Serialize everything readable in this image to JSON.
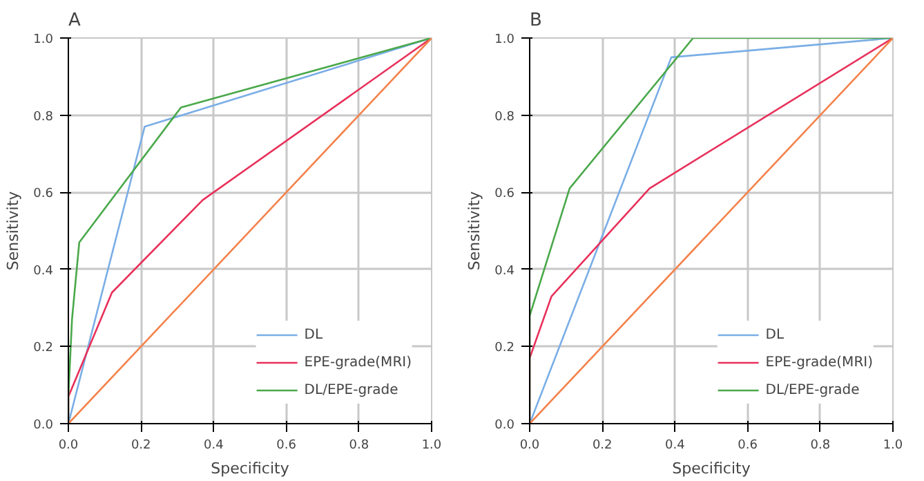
{
  "chart_data": [
    {
      "type": "line",
      "title": "A",
      "xlabel": "Specificity",
      "ylabel": "Sensitivity",
      "xlim": [
        0,
        1
      ],
      "ylim": [
        0,
        1
      ],
      "xticks": [
        {
          "value": 0,
          "label": "0.0"
        },
        {
          "value": 0.2,
          "label": "0.2"
        },
        {
          "value": 0.4,
          "label": "0.4"
        },
        {
          "value": 0.6,
          "label": "0.6"
        },
        {
          "value": 0.8,
          "label": "0.8"
        },
        {
          "value": 1,
          "label": "1.0"
        }
      ],
      "yticks": [
        {
          "value": 0,
          "label": "0.0"
        },
        {
          "value": 0.2,
          "label": "0.2"
        },
        {
          "value": 0.4,
          "label": "0.4"
        },
        {
          "value": 0.6,
          "label": "0.6"
        },
        {
          "value": 0.8,
          "label": "0.8"
        },
        {
          "value": 1,
          "label": "1.0"
        }
      ],
      "grid": true,
      "legend": "bottom right",
      "series": [
        {
          "name": "DL",
          "color": "#7aaee6",
          "x": [
            0,
            0.21,
            1
          ],
          "values": [
            0,
            0.77,
            1
          ]
        },
        {
          "name": "EPE-grade(MRI)",
          "color": "#e8305a",
          "x": [
            0,
            0,
            0.12,
            0.37,
            1
          ],
          "values": [
            0,
            0.07,
            0.34,
            0.58,
            1
          ]
        },
        {
          "name": "DL/EPE-grade",
          "color": "#4aa84a",
          "x": [
            0,
            0,
            0.01,
            0.03,
            0.31,
            1
          ],
          "values": [
            0,
            0.07,
            0.27,
            0.47,
            0.82,
            1
          ]
        },
        {
          "color": "#f4824b",
          "x": [
            0,
            1
          ],
          "values": [
            0,
            1
          ]
        }
      ]
    },
    {
      "type": "line",
      "title": "B",
      "xlabel": "Specificity",
      "ylabel": "Sensitivity",
      "xlim": [
        0,
        1
      ],
      "ylim": [
        0,
        1
      ],
      "xticks": [
        {
          "value": 0,
          "label": "0.0"
        },
        {
          "value": 0.2,
          "label": "0.2"
        },
        {
          "value": 0.4,
          "label": "0.4"
        },
        {
          "value": 0.6,
          "label": "0.6"
        },
        {
          "value": 0.8,
          "label": "0.8"
        },
        {
          "value": 1,
          "label": "1.0"
        }
      ],
      "yticks": [
        {
          "value": 0,
          "label": "0.0"
        },
        {
          "value": 0.2,
          "label": "0.2"
        },
        {
          "value": 0.4,
          "label": "0.4"
        },
        {
          "value": 0.6,
          "label": "0.6"
        },
        {
          "value": 0.8,
          "label": "0.8"
        },
        {
          "value": 1,
          "label": "1.0"
        }
      ],
      "grid": true,
      "legend": "bottom right",
      "series": [
        {
          "name": "DL",
          "color": "#7aaee6",
          "x": [
            0,
            0.39,
            1
          ],
          "values": [
            0,
            0.95,
            1
          ]
        },
        {
          "name": "EPE-grade(MRI)",
          "color": "#e8305a",
          "x": [
            0,
            0,
            0.06,
            0.33,
            1
          ],
          "values": [
            0,
            0.17,
            0.33,
            0.61,
            1
          ]
        },
        {
          "name": "DL/EPE-grade",
          "color": "#4aa84a",
          "x": [
            0,
            0,
            0.11,
            0.45,
            1
          ],
          "values": [
            0,
            0.28,
            0.61,
            1,
            1
          ]
        },
        {
          "color": "#f4824b",
          "x": [
            0,
            1
          ],
          "values": [
            0,
            1
          ]
        }
      ]
    }
  ]
}
